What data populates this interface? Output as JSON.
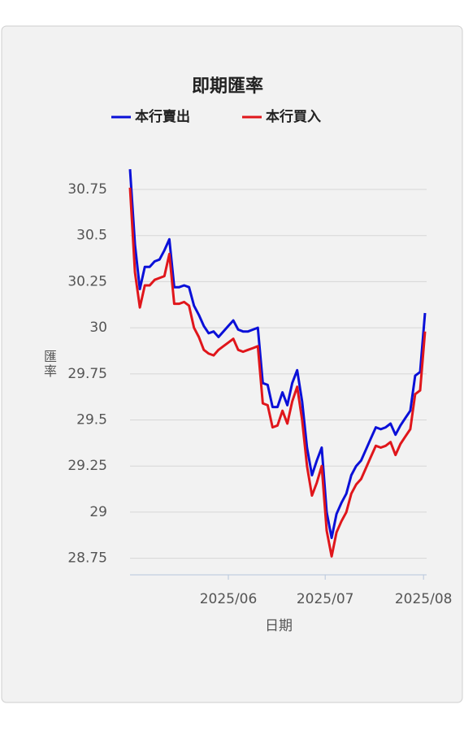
{
  "chart_data": {
    "type": "line",
    "title": "即期匯率",
    "x_label": "日期",
    "y_label": "匯率",
    "legend": "top",
    "categories": [
      null,
      null,
      null,
      null,
      null,
      null,
      null,
      null,
      null,
      null,
      null,
      null,
      null,
      null,
      null,
      null,
      null,
      null,
      null,
      null,
      null,
      null,
      null,
      null,
      null,
      null,
      null,
      null,
      null,
      null,
      null,
      null,
      null,
      null,
      null,
      null,
      null,
      null,
      null,
      null,
      null,
      null,
      null,
      null,
      null,
      null,
      null,
      null,
      null,
      null,
      null,
      null,
      null,
      null,
      null,
      null,
      null,
      null,
      null,
      null,
      null
    ],
    "series": [
      {
        "name": "本行賣出",
        "color": "#0a10d8",
        "values": [
          30.86,
          30.45,
          30.21,
          30.33,
          30.33,
          30.36,
          30.37,
          30.42,
          30.48,
          30.22,
          30.22,
          30.23,
          30.22,
          30.12,
          30.07,
          30.01,
          29.97,
          29.98,
          29.95,
          29.98,
          30.01,
          30.04,
          29.99,
          29.98,
          29.98,
          29.99,
          30.0,
          29.7,
          29.69,
          29.57,
          29.57,
          29.65,
          29.58,
          29.7,
          29.77,
          29.6,
          29.35,
          29.2,
          29.28,
          29.35,
          29.0,
          28.86,
          28.99,
          29.05,
          29.1,
          29.2,
          29.25,
          29.28,
          29.34,
          29.4,
          29.46,
          29.45,
          29.46,
          29.48,
          29.42,
          29.47,
          29.51,
          29.55,
          29.74,
          29.76,
          30.08
        ]
      },
      {
        "name": "本行買入",
        "color": "#e0161b",
        "values": [
          30.76,
          30.3,
          30.11,
          30.23,
          30.23,
          30.26,
          30.27,
          30.28,
          30.4,
          30.13,
          30.13,
          30.14,
          30.12,
          30.0,
          29.95,
          29.88,
          29.86,
          29.85,
          29.88,
          29.9,
          29.92,
          29.94,
          29.88,
          29.87,
          29.88,
          29.89,
          29.9,
          29.59,
          29.58,
          29.46,
          29.47,
          29.55,
          29.48,
          29.6,
          29.68,
          29.5,
          29.25,
          29.09,
          29.16,
          29.25,
          28.9,
          28.76,
          28.89,
          28.95,
          29.0,
          29.1,
          29.15,
          29.18,
          29.24,
          29.3,
          29.36,
          29.35,
          29.36,
          29.38,
          29.31,
          29.37,
          29.41,
          29.45,
          29.64,
          29.66,
          29.98
        ]
      }
    ],
    "ylim": [
      28.66,
      30.92
    ],
    "yticks": [
      28.75,
      29,
      29.25,
      29.5,
      29.75,
      30,
      30.25,
      30.5,
      30.75
    ],
    "xticks": [
      {
        "value": 20,
        "label": "2025/06"
      },
      {
        "value": 39.7,
        "label": "2025/07"
      },
      {
        "value": 59.7,
        "label": "2025/08"
      }
    ],
    "grid": true
  }
}
